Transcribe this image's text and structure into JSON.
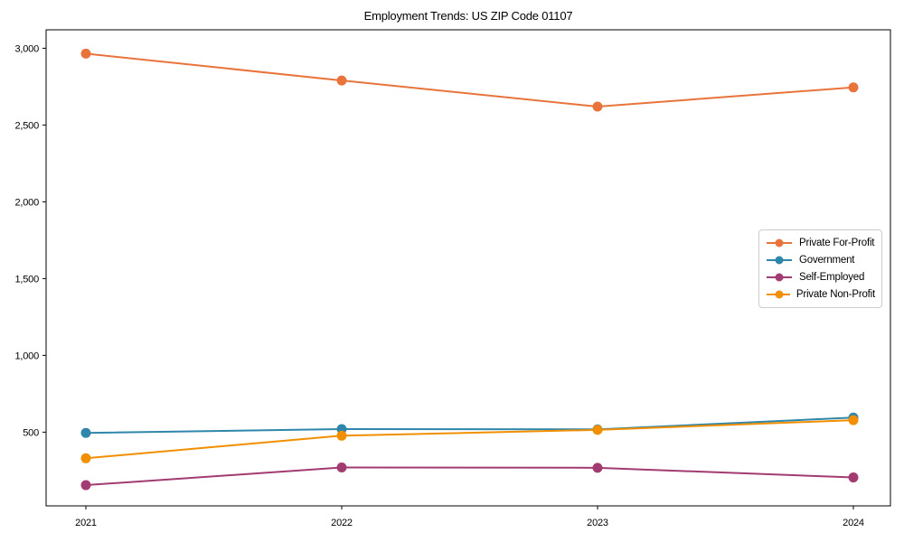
{
  "chart_data": {
    "type": "line",
    "title": "Employment Trends: US ZIP Code 01107",
    "categories": [
      "2021",
      "2022",
      "2023",
      "2024"
    ],
    "series": [
      {
        "name": "Private For-Profit",
        "color": "#E8743B",
        "values": [
          2965,
          2790,
          2620,
          2745
        ]
      },
      {
        "name": "Government",
        "color": "#2E86AB",
        "values": [
          495,
          520,
          518,
          595
        ]
      },
      {
        "name": "Self-Employed",
        "color": "#A23B72",
        "values": [
          155,
          270,
          268,
          205
        ]
      },
      {
        "name": "Private Non-Profit",
        "color": "#F18F01",
        "values": [
          330,
          477,
          515,
          578
        ]
      }
    ],
    "yticks": [
      500,
      1000,
      1500,
      2000,
      2500,
      3000
    ],
    "ytick_labels": [
      "500",
      "1,000",
      "1,500",
      "2,000",
      "2,500",
      "3,000"
    ],
    "ylim": [
      20,
      3120
    ],
    "xlabel": "",
    "ylabel": "",
    "grid": false,
    "legend_position": "center-right",
    "marker": "circle"
  }
}
